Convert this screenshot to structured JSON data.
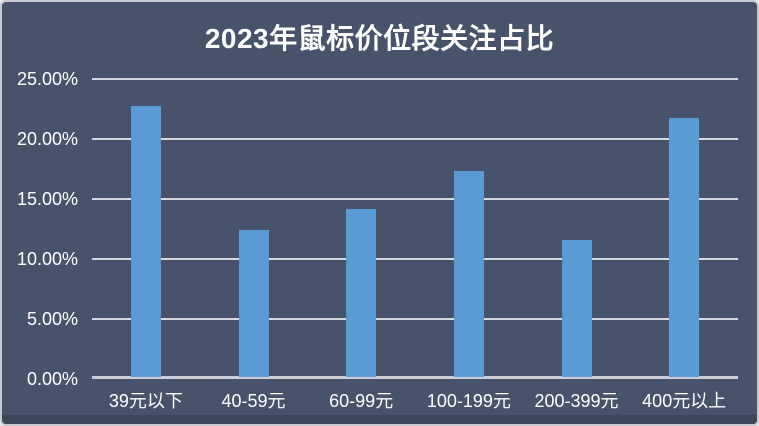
{
  "chart_data": {
    "type": "bar",
    "title": "2023年鼠标价位段关注占比",
    "categories": [
      "39元以下",
      "40-59元",
      "60-99元",
      "100-199元",
      "200-399元",
      "400元以上"
    ],
    "values": [
      22.7,
      12.3,
      14.1,
      17.3,
      11.5,
      21.7
    ],
    "unit": "%",
    "xlabel": "",
    "ylabel": "",
    "ylim": [
      0,
      25
    ],
    "y_tick_labels": [
      "25.00%",
      "20.00%",
      "15.00%",
      "10.00%",
      "5.00%",
      "0.00%"
    ],
    "y_tick_values": [
      25,
      20,
      15,
      10,
      5,
      0
    ],
    "grid": true,
    "legend": false,
    "colors": {
      "background": "#46536A",
      "bar": "#5B9BD5",
      "grid_line": "#D6D8DD",
      "axis_line": "#CBCED6",
      "text": "#FFFFFF",
      "frame_border": "#C9CAD1",
      "bottom_strip": "#3B4759"
    }
  }
}
